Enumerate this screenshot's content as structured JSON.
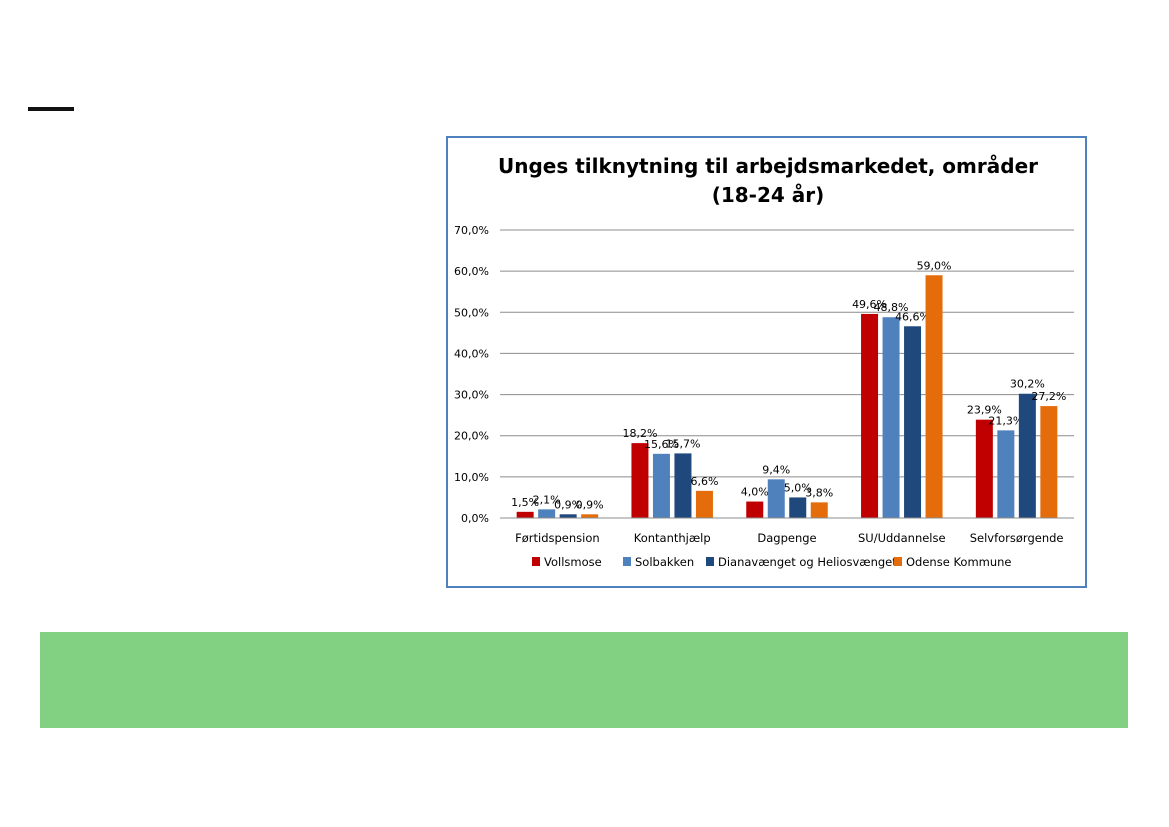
{
  "chart_data": {
    "type": "bar",
    "title": "Unges tilknytning til arbejdsmarkedet, områder (18-24 år)",
    "categories": [
      "Førtidspension",
      "Kontanthjælp",
      "Dagpenge",
      "SU/Uddannelse",
      "Selvforsørgende"
    ],
    "series": [
      {
        "name": "Vollsmose",
        "color": "#c00000",
        "values": [
          1.5,
          18.2,
          4.0,
          49.6,
          23.9
        ]
      },
      {
        "name": "Solbakken",
        "color": "#4f81bd",
        "values": [
          2.1,
          15.6,
          9.4,
          48.8,
          21.3
        ]
      },
      {
        "name": "Dianavænget og Heliosvænget",
        "color": "#1f497d",
        "values": [
          0.9,
          15.7,
          5.0,
          46.6,
          30.2
        ]
      },
      {
        "name": "Odense Kommune",
        "color": "#e46c0a",
        "values": [
          0.9,
          6.6,
          3.8,
          59.0,
          27.2
        ]
      }
    ],
    "data_labels": [
      [
        "1,5%",
        "18,2%",
        "4,0%",
        "49,6%",
        "23,9%"
      ],
      [
        "2,1%",
        "15,6%",
        "9,4%",
        "48,8%",
        "21,3%"
      ],
      [
        "0,9%",
        "15,7%",
        "5,0%",
        "46,6%",
        "30,2%"
      ],
      [
        "0,9%",
        "6,6%",
        "3,8%",
        "59,0%",
        "27,2%"
      ]
    ],
    "yticks": [
      "0,0%",
      "10,0%",
      "20,0%",
      "30,0%",
      "40,0%",
      "50,0%",
      "60,0%",
      "70,0%"
    ],
    "ylim": [
      0,
      70
    ],
    "grid": true,
    "legend_position": "bottom"
  }
}
